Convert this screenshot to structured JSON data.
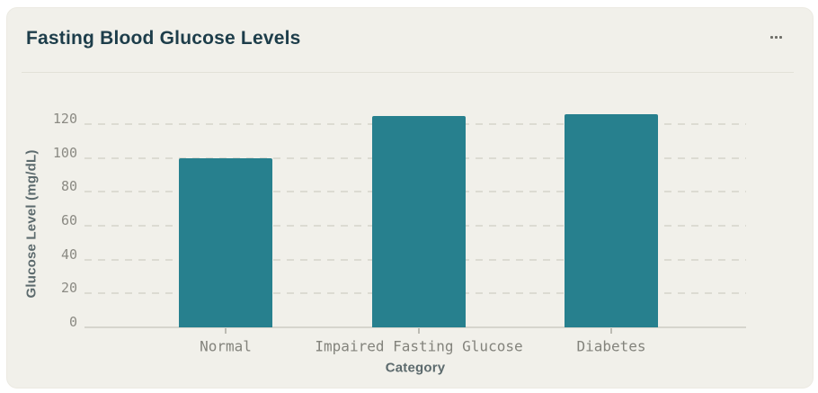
{
  "card": {
    "title": "Fasting Blood Glucose Levels",
    "menu_icon": "ellipsis-horizontal-icon"
  },
  "colors": {
    "card_background": "#f1f0ea",
    "page_background": "#ffffff",
    "title_text": "#1d3d4a",
    "bar_fill": "#27808e",
    "gridline": "#dcdbd2",
    "axis_line": "#d6d5cd",
    "tick_label_text": "#8b8a83",
    "axis_title_text": "#5c6a6d"
  },
  "chart_data": {
    "type": "bar",
    "title": "Fasting Blood Glucose Levels",
    "categories": [
      "Normal",
      "Impaired Fasting Glucose",
      "Diabetes"
    ],
    "values": [
      100,
      125,
      126
    ],
    "xlabel": "Category",
    "ylabel": "Glucose Level (mg/dL)",
    "ylim": [
      0,
      120
    ],
    "yticks": [
      0,
      20,
      40,
      60,
      80,
      100,
      120
    ],
    "grid": "horizontal-dashed",
    "legend": "none",
    "bar_color": "#27808e"
  }
}
